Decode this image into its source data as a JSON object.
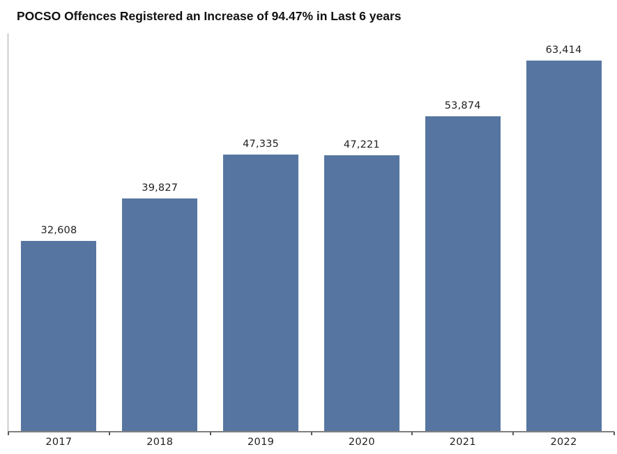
{
  "title": "POCSO Offences Registered an Increase of 94.47% in Last 6 years",
  "chart_data": {
    "type": "bar",
    "title": "POCSO Offences Registered an Increase of 94.47% in Last 6 years",
    "categories": [
      "2017",
      "2018",
      "2019",
      "2020",
      "2021",
      "2022"
    ],
    "values": [
      32608,
      39827,
      47335,
      47221,
      53874,
      63414
    ],
    "value_labels": [
      "32,608",
      "39,827",
      "47,335",
      "47,221",
      "53,874",
      "63,414"
    ],
    "xlabel": "",
    "ylabel": "",
    "ylim": [
      0,
      68000
    ],
    "grid": false,
    "legend": "none",
    "bar_color": "#5676A1",
    "y_axis_color": "#a6a6a6",
    "x_axis_color": "#7f7f7f",
    "label_color": "#1f1f1f"
  }
}
